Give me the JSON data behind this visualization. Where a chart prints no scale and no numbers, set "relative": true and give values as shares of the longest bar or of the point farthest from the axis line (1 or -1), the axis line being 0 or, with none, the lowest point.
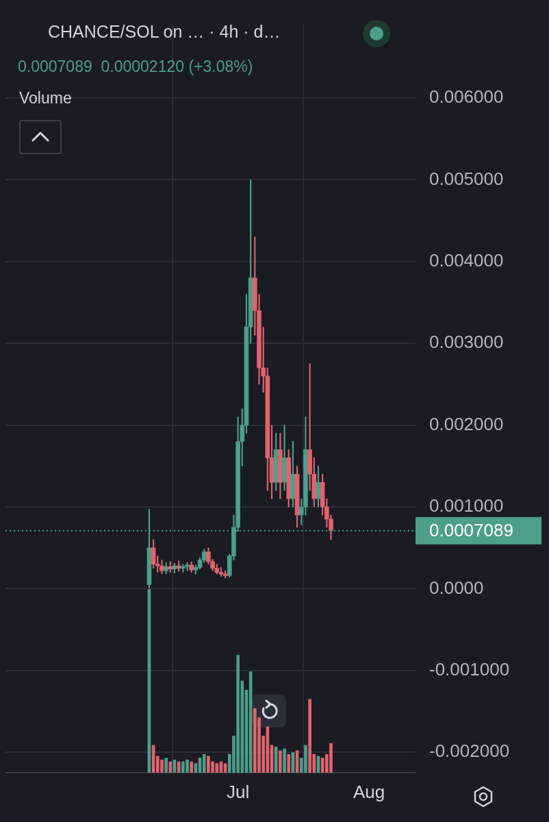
{
  "chart_data": [
    {
      "type": "candlestick",
      "title": "CHANCE/SOL on … · 4h · d…",
      "subtitle": "0.0007089  0.00002120 (+3.08%)",
      "x": [
        "--06-10",
        "--06-11",
        "--06-12",
        "--06-13",
        "--06-14",
        "--06-15",
        "--06-16",
        "--06-17",
        "--06-18",
        "--06-19",
        "--06-20",
        "--06-21",
        "--06-22",
        "--06-23",
        "--06-24",
        "--06-25",
        "--06-26",
        "--06-27",
        "--06-28",
        "--06-29",
        "--06-30",
        "--07-01",
        "--07-02",
        "--07-03",
        "--07-04",
        "--07-05",
        "--07-06",
        "--07-07",
        "--07-08",
        "--07-09",
        "--07-10",
        "--07-11",
        "--07-12",
        "--07-13",
        "--07-14",
        "--07-15",
        "--07-16",
        "--07-17",
        "--07-18",
        "--07-19",
        "--07-20",
        "--07-21",
        "--07-22",
        "--07-23"
      ],
      "ohlc": [
        [
          5e-05,
          0.00097,
          0.0,
          0.0005
        ],
        [
          0.0005,
          0.0006,
          0.00025,
          0.0003
        ],
        [
          0.0003,
          0.0004,
          0.0002,
          0.00028
        ],
        [
          0.00028,
          0.00035,
          0.00018,
          0.00022
        ],
        [
          0.00022,
          0.00032,
          0.00018,
          0.00027
        ],
        [
          0.00027,
          0.00033,
          0.0002,
          0.00024
        ],
        [
          0.00024,
          0.00031,
          0.00019,
          0.00028
        ],
        [
          0.00028,
          0.00034,
          0.00021,
          0.00025
        ],
        [
          0.00025,
          0.0003,
          0.0002,
          0.00027
        ],
        [
          0.00027,
          0.00032,
          0.00022,
          0.00029
        ],
        [
          0.00029,
          0.00033,
          0.0002,
          0.00023
        ],
        [
          0.00023,
          0.00029,
          0.00018,
          0.00026
        ],
        [
          0.00026,
          0.00038,
          0.00024,
          0.00035
        ],
        [
          0.00035,
          0.00048,
          0.00032,
          0.00045
        ],
        [
          0.00045,
          0.0005,
          0.0003,
          0.00033
        ],
        [
          0.00033,
          0.00036,
          0.00022,
          0.00025
        ],
        [
          0.00025,
          0.0003,
          0.00018,
          0.0002
        ],
        [
          0.0002,
          0.00026,
          0.00015,
          0.00018
        ],
        [
          0.00018,
          0.00022,
          0.00013,
          0.00016
        ],
        [
          0.00016,
          0.00042,
          0.00014,
          0.0004
        ],
        [
          0.0004,
          0.0009,
          0.00035,
          0.00075
        ],
        [
          0.00075,
          0.0021,
          0.0007,
          0.0018
        ],
        [
          0.0018,
          0.0022,
          0.0015,
          0.002
        ],
        [
          0.002,
          0.0036,
          0.0019,
          0.0032
        ],
        [
          0.0032,
          0.005,
          0.003,
          0.0038
        ],
        [
          0.0038,
          0.0043,
          0.0031,
          0.0034
        ],
        [
          0.0034,
          0.0036,
          0.0025,
          0.0027
        ],
        [
          0.0027,
          0.0032,
          0.0024,
          0.0026
        ],
        [
          0.0026,
          0.0027,
          0.0012,
          0.0016
        ],
        [
          0.0016,
          0.002,
          0.0011,
          0.0013
        ],
        [
          0.0013,
          0.0019,
          0.0012,
          0.0017
        ],
        [
          0.0017,
          0.0019,
          0.0011,
          0.0013
        ],
        [
          0.0013,
          0.002,
          0.0012,
          0.0016
        ],
        [
          0.0016,
          0.0017,
          0.001,
          0.0011
        ],
        [
          0.0011,
          0.0018,
          0.001,
          0.0014
        ],
        [
          0.0014,
          0.0015,
          0.00075,
          0.0009
        ],
        [
          0.0009,
          0.0011,
          0.00078,
          0.001
        ],
        [
          0.001,
          0.0021,
          0.0009,
          0.0017
        ],
        [
          0.0017,
          0.00275,
          0.0012,
          0.0014
        ],
        [
          0.0014,
          0.0016,
          0.001,
          0.0011
        ],
        [
          0.0011,
          0.0015,
          0.001,
          0.0013
        ],
        [
          0.0013,
          0.0014,
          0.0009,
          0.001
        ],
        [
          0.001,
          0.0011,
          0.00075,
          0.00085
        ],
        [
          0.00085,
          0.0009,
          0.0006,
          0.0007089
        ]
      ],
      "colors": [
        "#4d9e8a",
        "#e0636d",
        "#e0636d",
        "#e0636d",
        "#4d9e8a",
        "#e0636d",
        "#4d9e8a",
        "#e0636d",
        "#4d9e8a",
        "#4d9e8a",
        "#e0636d",
        "#4d9e8a",
        "#4d9e8a",
        "#4d9e8a",
        "#e0636d",
        "#e0636d",
        "#e0636d",
        "#e0636d",
        "#e0636d",
        "#4d9e8a",
        "#4d9e8a",
        "#4d9e8a",
        "#4d9e8a",
        "#4d9e8a",
        "#4d9e8a",
        "#e0636d",
        "#e0636d",
        "#e0636d",
        "#e0636d",
        "#e0636d",
        "#4d9e8a",
        "#e0636d",
        "#4d9e8a",
        "#e0636d",
        "#4d9e8a",
        "#e0636d",
        "#4d9e8a",
        "#4d9e8a",
        "#e0636d",
        "#e0636d",
        "#4d9e8a",
        "#e0636d",
        "#e0636d",
        "#e0636d"
      ],
      "xlim": [
        "--05-07",
        "--08-12"
      ],
      "xticks": [
        {
          "value": "--07-01",
          "label": null
        },
        {
          "value": "--08-01",
          "label": null
        }
      ],
      "tick_labels": "y",
      "ylim": [
        -0.00225,
        0.0069
      ],
      "yticks": [
        {
          "value": -0.002,
          "label": "-0.002000"
        },
        {
          "value": -0.001,
          "label": "-0.001000"
        },
        {
          "value": 0,
          "label": "0.0000"
        },
        {
          "value": 0.001,
          "label": "0.001000"
        },
        {
          "value": 0.002,
          "label": "0.002000"
        },
        {
          "value": 0.003,
          "label": "0.003000"
        },
        {
          "value": 0.004,
          "label": "0.004000"
        },
        {
          "value": 0.005,
          "label": "0.005000"
        },
        {
          "value": 0.006,
          "label": "0.006000"
        }
      ],
      "grid": true,
      "ref_lines": [
        {
          "axis": "y",
          "value": 0.0007089,
          "label": "0.0007089",
          "color": "#4d9e8a",
          "line_style": "dotted"
        }
      ]
    },
    {
      "type": "bar",
      "title": "Volume",
      "relative": true,
      "x": [
        "--06-10",
        "--06-11",
        "--06-12",
        "--06-13",
        "--06-14",
        "--06-15",
        "--06-16",
        "--06-17",
        "--06-18",
        "--06-19",
        "--06-20",
        "--06-21",
        "--06-22",
        "--06-23",
        "--06-24",
        "--06-25",
        "--06-26",
        "--06-27",
        "--06-28",
        "--06-29",
        "--06-30",
        "--07-01",
        "--07-02",
        "--07-03",
        "--07-04",
        "--07-05",
        "--07-06",
        "--07-07",
        "--07-08",
        "--07-09",
        "--07-10",
        "--07-11",
        "--07-12",
        "--07-13",
        "--07-14",
        "--07-15",
        "--07-16",
        "--07-17",
        "--07-18",
        "--07-19",
        "--07-20",
        "--07-21",
        "--07-22",
        "--07-23"
      ],
      "values": [
        1,
        0.15,
        0.09,
        0.07,
        0.08,
        0.06,
        0.07,
        0.06,
        0.06,
        0.07,
        0.06,
        0.05,
        0.08,
        0.1,
        0.09,
        0.06,
        0.05,
        0.06,
        0.05,
        0.1,
        0.2,
        0.64,
        0.5,
        0.45,
        0.55,
        0.35,
        0.3,
        0.2,
        0.25,
        0.15,
        0.14,
        0.12,
        0.13,
        0.1,
        0.11,
        0.12,
        0.08,
        0.15,
        0.4,
        0.1,
        0.09,
        0.08,
        0.1,
        0.16
      ],
      "colors": [
        "#4d9e8a",
        "#e0636d",
        "#e0636d",
        "#e0636d",
        "#4d9e8a",
        "#e0636d",
        "#4d9e8a",
        "#e0636d",
        "#4d9e8a",
        "#4d9e8a",
        "#e0636d",
        "#4d9e8a",
        "#4d9e8a",
        "#4d9e8a",
        "#e0636d",
        "#e0636d",
        "#e0636d",
        "#e0636d",
        "#e0636d",
        "#4d9e8a",
        "#4d9e8a",
        "#4d9e8a",
        "#4d9e8a",
        "#4d9e8a",
        "#4d9e8a",
        "#e0636d",
        "#e0636d",
        "#e0636d",
        "#e0636d",
        "#e0636d",
        "#4d9e8a",
        "#e0636d",
        "#4d9e8a",
        "#e0636d",
        "#4d9e8a",
        "#e0636d",
        "#4d9e8a",
        "#4d9e8a",
        "#e0636d",
        "#e0636d",
        "#4d9e8a",
        "#e0636d",
        "#e0636d",
        "#e0636d"
      ],
      "xlim": [
        "--05-07",
        "--08-12"
      ],
      "xticks": [
        {
          "value": "--07-01",
          "label": "Jul"
        },
        {
          "value": "--08-01",
          "label": "Aug"
        }
      ]
    }
  ]
}
